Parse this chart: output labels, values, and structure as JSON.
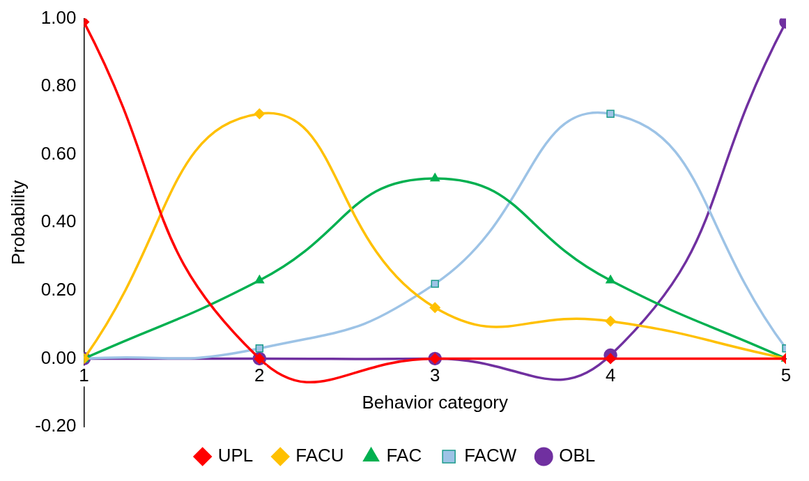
{
  "chart_data": {
    "type": "line",
    "xlabel": "Behavior category",
    "ylabel": "Probability",
    "x": [
      1,
      2,
      3,
      4,
      5
    ],
    "xlim": [
      1,
      5
    ],
    "xticks": [
      1,
      2,
      3,
      4,
      5
    ],
    "ylim": [
      -0.2,
      1.0
    ],
    "yticks": [
      {
        "value": -0.2,
        "label": "-0.20"
      },
      {
        "value": 0,
        "label": "0.00"
      },
      {
        "value": 0.2,
        "label": "0.20"
      },
      {
        "value": 0.4,
        "label": "0.40"
      },
      {
        "value": 0.6,
        "label": "0.60"
      },
      {
        "value": 0.8,
        "label": "0.80"
      },
      {
        "value": 1.0,
        "label": "1.00"
      }
    ],
    "grid": false,
    "legend": "bottom",
    "line_style": "solid",
    "series": [
      {
        "name": "UPL",
        "color": "#ff0000",
        "marker": "diamond",
        "values": [
          0.99,
          0.0,
          0.0,
          0.0,
          0.0
        ]
      },
      {
        "name": "FACU",
        "color": "#ffc000",
        "marker": "diamond",
        "values": [
          0.0,
          0.72,
          0.15,
          0.11,
          0.0
        ]
      },
      {
        "name": "FAC",
        "color": "#00b050",
        "marker": "triangle",
        "values": [
          0.0,
          0.23,
          0.53,
          0.23,
          0.0
        ]
      },
      {
        "name": "FACW",
        "color": "#9dc3e6",
        "marker": "square",
        "values": [
          0.0,
          0.03,
          0.22,
          0.72,
          0.03
        ]
      },
      {
        "name": "OBL",
        "color": "#7030a0",
        "marker": "circle",
        "values": [
          0.0,
          0.0,
          0.0,
          0.01,
          0.99
        ]
      }
    ]
  }
}
